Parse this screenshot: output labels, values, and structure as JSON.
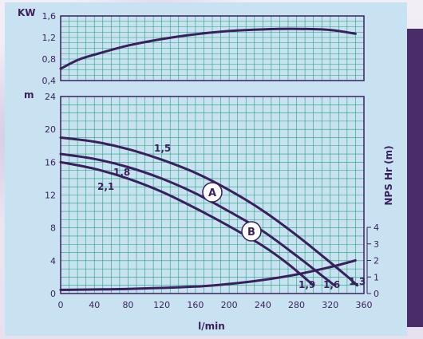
{
  "chart_data": [
    {
      "type": "line",
      "id": "power",
      "ylabel": "KW",
      "xlim": [
        0,
        360
      ],
      "ylim": [
        0.4,
        1.6
      ],
      "y_ticks": [
        "1,6",
        "1,2",
        "0,8",
        "0,4"
      ],
      "grid": true,
      "series": [
        {
          "values": [
            [
              0,
              0.62
            ],
            [
              20,
              0.78
            ],
            [
              40,
              0.88
            ],
            [
              80,
              1.05
            ],
            [
              120,
              1.17
            ],
            [
              160,
              1.26
            ],
            [
              200,
              1.32
            ],
            [
              240,
              1.35
            ],
            [
              280,
              1.36
            ],
            [
              320,
              1.34
            ],
            [
              350,
              1.27
            ]
          ]
        }
      ]
    },
    {
      "type": "line",
      "id": "head",
      "xlabel": "l/min",
      "ylabel": "m",
      "y2label": "NPS Hr (m)",
      "xlim": [
        0,
        360
      ],
      "ylim": [
        0,
        24
      ],
      "y2lim": [
        0,
        4
      ],
      "x_ticks": [
        "0",
        "40",
        "80",
        "120",
        "160",
        "200",
        "240",
        "280",
        "320",
        "360"
      ],
      "y_ticks": [
        "24",
        "20",
        "16",
        "12",
        "8",
        "4",
        "0"
      ],
      "y2_ticks": [
        "4",
        "3",
        "2",
        "1",
        "0"
      ],
      "grid": true,
      "series": [
        {
          "name": "1,5",
          "end_label": "1,3",
          "values": [
            [
              0,
              19
            ],
            [
              40,
              18.5
            ],
            [
              80,
              17.6
            ],
            [
              120,
              16.3
            ],
            [
              160,
              14.7
            ],
            [
              200,
              12.6
            ],
            [
              240,
              10.1
            ],
            [
              280,
              7.1
            ],
            [
              320,
              3.8
            ],
            [
              340,
              2.1
            ],
            [
              352,
              1.0
            ]
          ]
        },
        {
          "name": "1,8",
          "end_label": "1,6",
          "values": [
            [
              0,
              17
            ],
            [
              40,
              16.4
            ],
            [
              80,
              15.4
            ],
            [
              120,
              14.0
            ],
            [
              160,
              12.2
            ],
            [
              200,
              10.0
            ],
            [
              240,
              7.6
            ],
            [
              280,
              4.6
            ],
            [
              310,
              2.2
            ],
            [
              325,
              1.0
            ]
          ]
        },
        {
          "name": "2,1",
          "end_label": "1,9",
          "values": [
            [
              0,
              16
            ],
            [
              40,
              15.2
            ],
            [
              80,
              14.0
            ],
            [
              120,
              12.4
            ],
            [
              160,
              10.4
            ],
            [
              200,
              8.2
            ],
            [
              240,
              5.8
            ],
            [
              270,
              3.6
            ],
            [
              300,
              1.0
            ]
          ]
        },
        {
          "name": "NPS Hr",
          "axis": "right",
          "values": [
            [
              0,
              0.22
            ],
            [
              80,
              0.28
            ],
            [
              160,
              0.42
            ],
            [
              200,
              0.58
            ],
            [
              240,
              0.82
            ],
            [
              280,
              1.15
            ],
            [
              320,
              1.6
            ],
            [
              350,
              2.0
            ]
          ]
        }
      ],
      "markers": [
        "A",
        "B"
      ]
    }
  ],
  "colors": {
    "panel": "#c8e2f1",
    "grid": "#1fa37a",
    "axis_frame": "#3a1f5e",
    "curve": "#3a1f5e",
    "right_bar": "#4a2c6a"
  }
}
